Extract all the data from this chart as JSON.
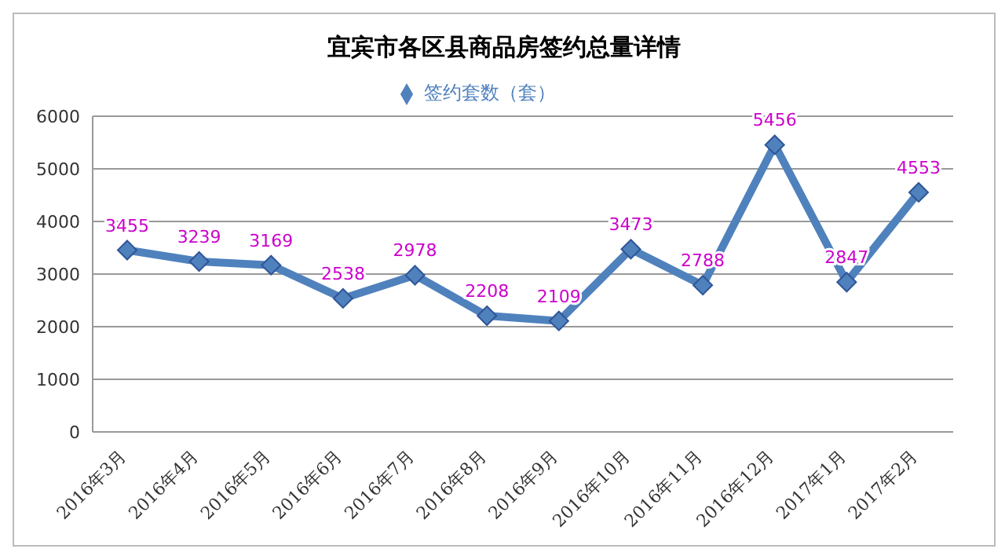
{
  "chart_data": {
    "type": "line",
    "title": "宜宾市各区县商品房签约总量详情",
    "categories": [
      "2016年3月",
      "2016年4月",
      "2016年5月",
      "2016年6月",
      "2016年7月",
      "2016年8月",
      "2016年9月",
      "2016年10月",
      "2016年11月",
      "2016年12月",
      "2017年1月",
      "2017年2月"
    ],
    "series": [
      {
        "name": "签约套数（套）",
        "color": "#4f81bd",
        "values": [
          3455,
          3239,
          3169,
          2538,
          2978,
          2208,
          2109,
          3473,
          2788,
          5456,
          2847,
          4553
        ]
      }
    ],
    "ylim": [
      0,
      6000
    ],
    "yticks": [
      0,
      1000,
      2000,
      3000,
      4000,
      5000,
      6000
    ],
    "grid": "y",
    "legend": "top",
    "marker": "diamond",
    "line_style": "solid",
    "data_labels": true
  }
}
